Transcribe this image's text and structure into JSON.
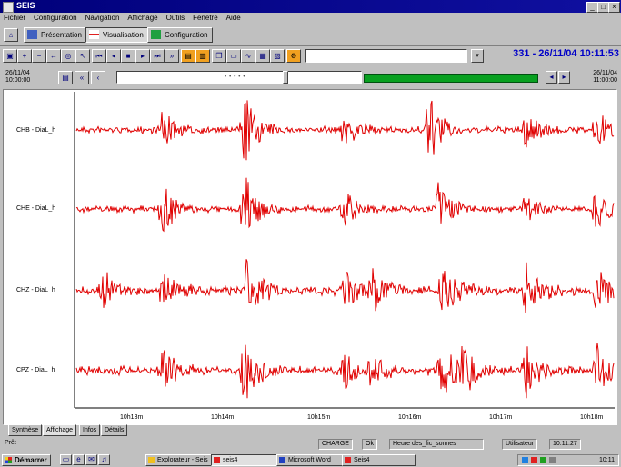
{
  "window": {
    "title": "SEIS",
    "buttons": {
      "minimize": "_",
      "maximize": "□",
      "close": "×"
    }
  },
  "menu": [
    "Fichier",
    "Configuration",
    "Navigation",
    "Affichage",
    "Outils",
    "Fenêtre",
    "Aide"
  ],
  "tabs": [
    {
      "label": "Présentation",
      "active": false
    },
    {
      "label": "Visualisation",
      "active": true
    },
    {
      "label": "Configuration",
      "active": false
    }
  ],
  "toolbar": {
    "datetime": "331 - 26/11/04 10:11:53"
  },
  "timeline": {
    "start_date": "26/11/04",
    "start_time": "10:00:00",
    "end_date": "26/11/04",
    "end_time": "11:00:00",
    "position": 0.69
  },
  "traces": [
    {
      "label": "CHB - DiaL_h"
    },
    {
      "label": "CHE - DiaL_h"
    },
    {
      "label": "CHZ - DiaL_h"
    },
    {
      "label": "CPZ - DiaL_h"
    }
  ],
  "chart_data": {
    "type": "line",
    "x_ticks": [
      "10h13m",
      "10h14m",
      "10h15m",
      "10h16m",
      "10h17m",
      "10h18m"
    ],
    "color": "#e00000",
    "grid": false
  },
  "bottom_tabs": [
    {
      "label": "Synthèse",
      "active": false
    },
    {
      "label": "Affichage",
      "active": true
    },
    {
      "label": "Infos",
      "active": false
    },
    {
      "label": "Détails",
      "active": false
    }
  ],
  "status": {
    "left": "Prêt",
    "mode": "CHARGE",
    "field": "Ok",
    "file": "Heure des_fic_sonnes",
    "user": "Utilisateur",
    "time": "10:11:27"
  },
  "taskbar": {
    "start": "Démarrer",
    "tasks": [
      "Explorateur - Seis",
      "seis4",
      "Microsoft Word",
      "Seis4"
    ],
    "clock": "10:11"
  }
}
